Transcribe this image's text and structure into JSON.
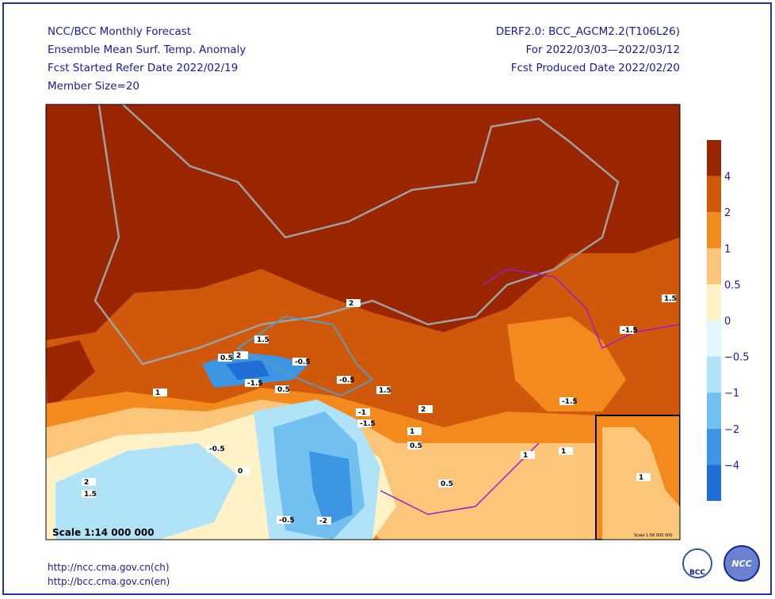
{
  "header": {
    "left": [
      "NCC/BCC Monthly Forecast",
      "Ensemble Mean Surf. Temp. Anomaly",
      "Fcst Started Refer Date 2022/02/19",
      "Member Size=20"
    ],
    "right": [
      "DERF2.0: BCC_AGCM2.2(T106L26)",
      "For 2022/03/03—2022/03/12",
      "Fcst Produced Date 2022/02/20"
    ]
  },
  "legend": {
    "labels": [
      "4",
      "2",
      "1",
      "0.5",
      "0",
      "−0.5",
      "−1",
      "−2",
      "−4"
    ],
    "colors": [
      "#9a2600",
      "#d0580a",
      "#f28a1e",
      "#fbc57a",
      "#fff2c6",
      "#e2f8ff",
      "#b0e2f8",
      "#72c0f0",
      "#3d96e4",
      "#1f6fd6"
    ]
  },
  "map": {
    "scale": "Scale 1:14 000 000",
    "inset_scale": "Scale 1:56 000 000",
    "contour_labels": [
      "2",
      "1.5",
      "0.5",
      "-0.5",
      "-1.5",
      "0.5",
      "1",
      "-0.5",
      "1.5",
      "2",
      "-1",
      "-1.5",
      "1",
      "0.5",
      "-1.5",
      "1",
      "-0.5",
      "0",
      "2",
      "1.5",
      "-2",
      "-0.5",
      "0.5",
      "1",
      "1",
      "-1.5",
      "1.5",
      "2"
    ]
  },
  "footer": {
    "links": [
      "http://ncc.cma.gov.cn(ch)",
      "http://bcc.cma.gov.cn(en)"
    ],
    "logos": [
      "BCC",
      "NCC"
    ]
  }
}
